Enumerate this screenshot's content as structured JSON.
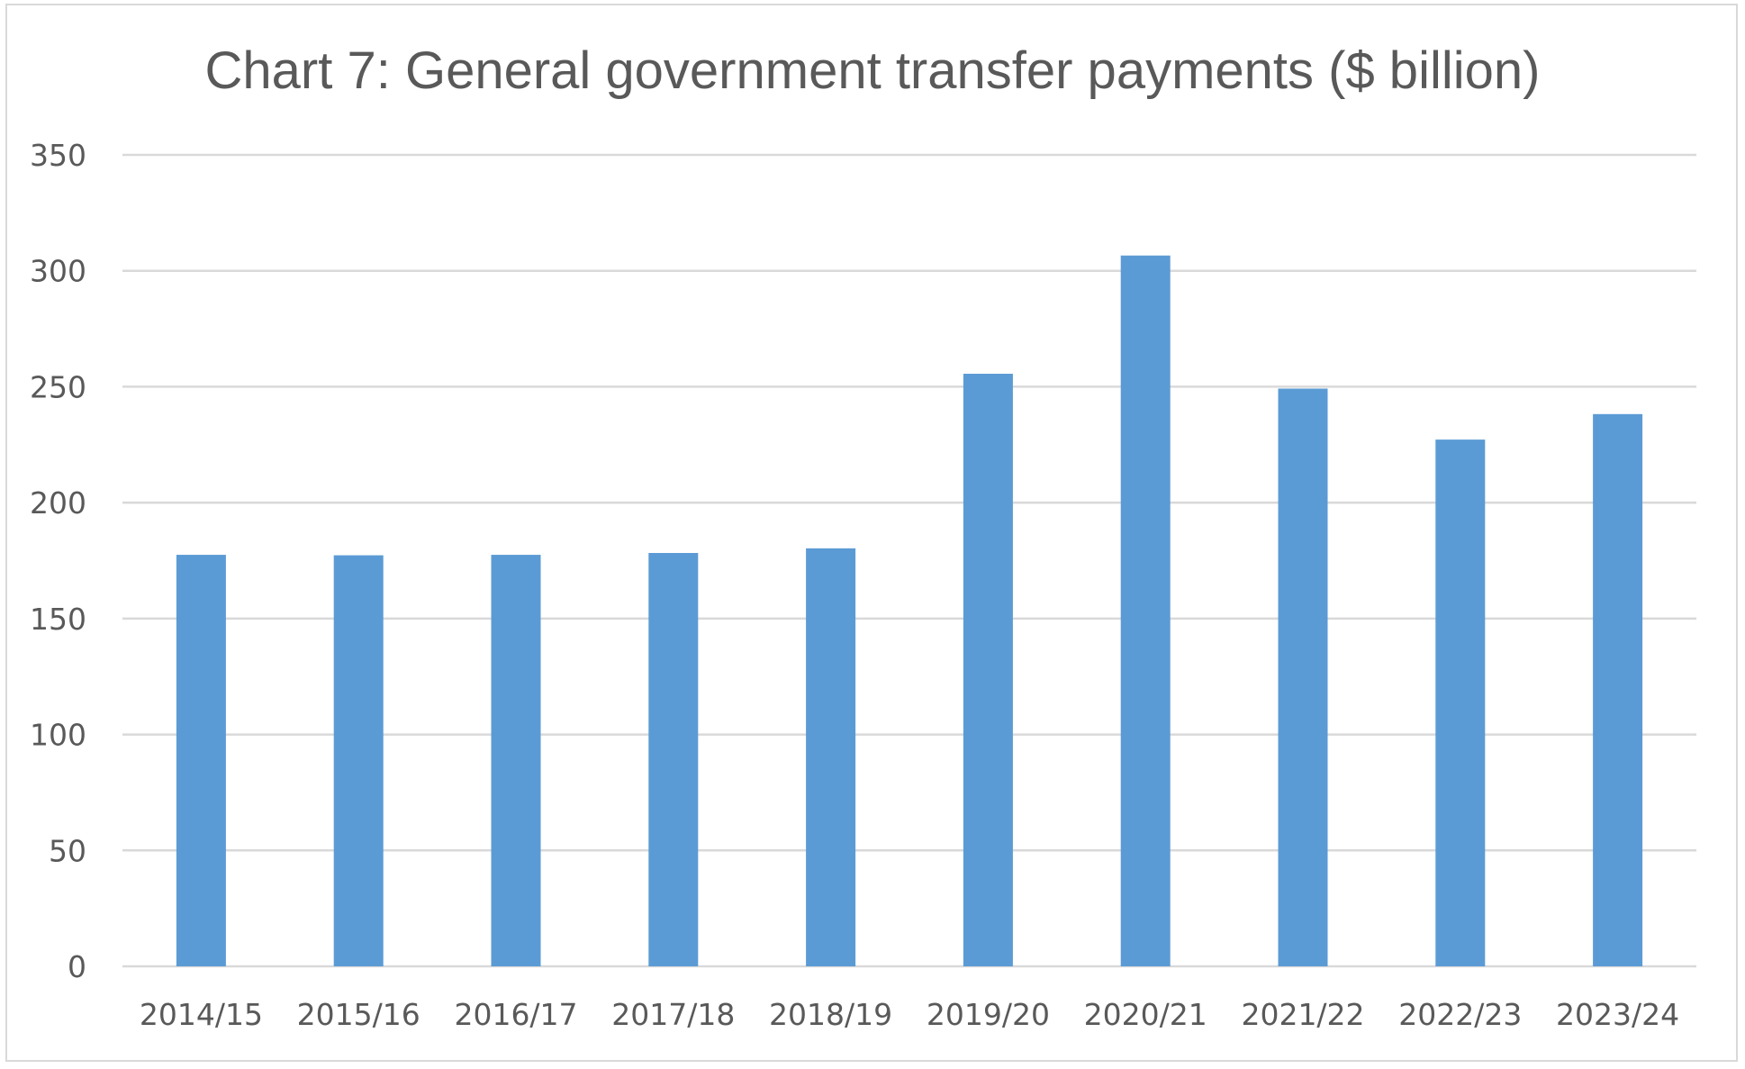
{
  "chart_data": {
    "type": "bar",
    "title": "Chart 7: General government transfer payments ($ billion)",
    "xlabel": "",
    "ylabel": "",
    "categories": [
      "2014/15",
      "2015/16",
      "2016/17",
      "2017/18",
      "2018/19",
      "2019/20",
      "2020/21",
      "2021/22",
      "2022/23",
      "2023/24"
    ],
    "values": [
      177.5,
      177.3,
      177.5,
      178.3,
      180.3,
      255.6,
      306.6,
      249.2,
      227.2,
      238.2
    ],
    "ylim": [
      0,
      350
    ],
    "yticks": [
      "0",
      "50",
      "100",
      "150",
      "200",
      "250",
      "300",
      "350"
    ],
    "grid": true,
    "legend": "none",
    "bar_color": "#5b9bd5",
    "grid_color": "#d9d9d9"
  }
}
